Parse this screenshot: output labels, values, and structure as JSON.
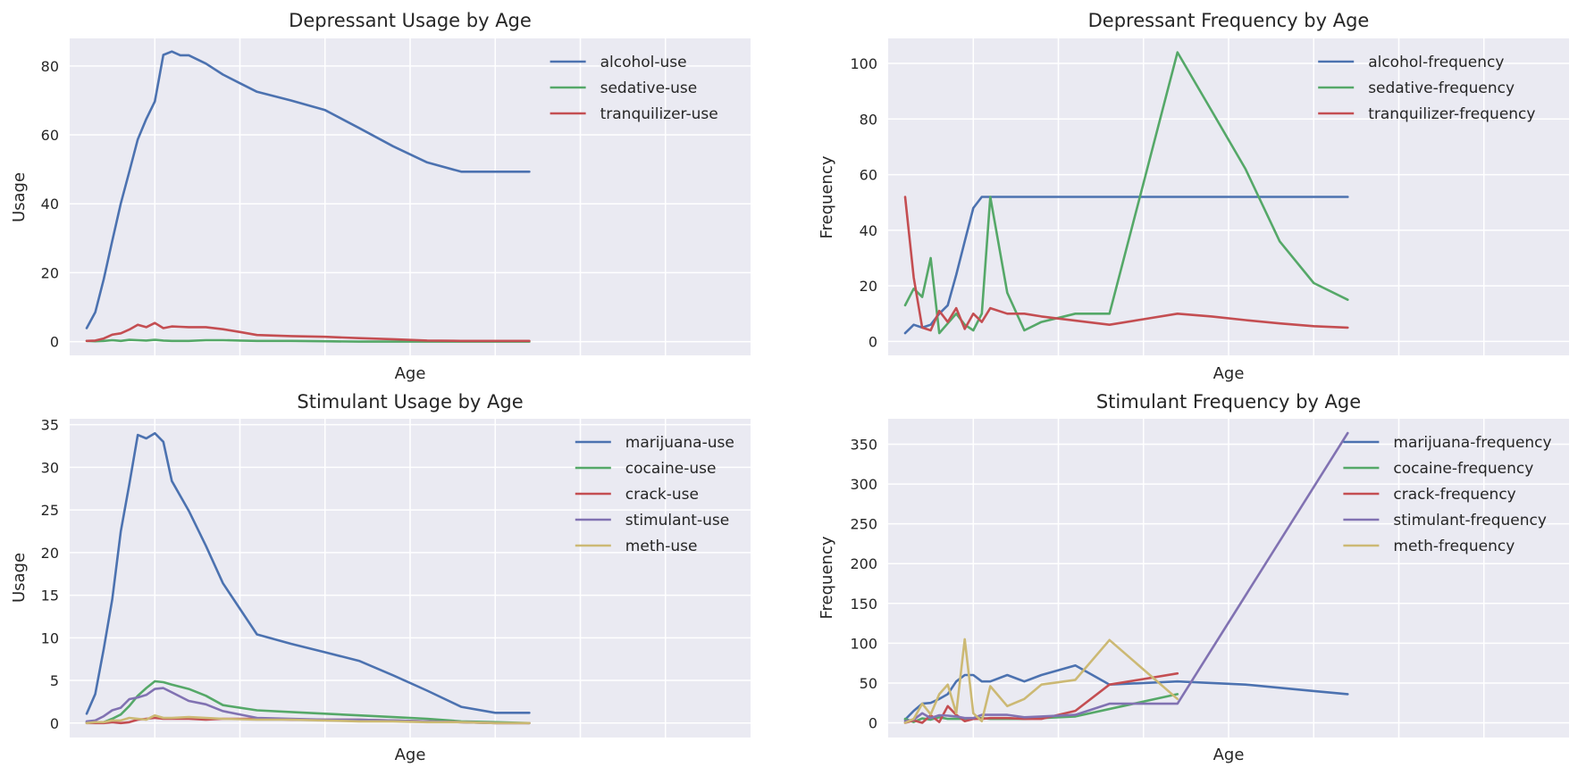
{
  "style": {
    "axes_bg": "#EAEAF2",
    "grid": "#FFFFFF",
    "colors": [
      "#4C72B0",
      "#55A868",
      "#C44E52",
      "#8172B2",
      "#CCB974"
    ]
  },
  "chart_data": [
    {
      "id": "depressant-usage",
      "type": "line",
      "title": "Depressant Usage by Age",
      "xlabel": "Age",
      "ylabel": "Usage",
      "ylim": [
        -4,
        88
      ],
      "yticks": [
        0,
        20,
        40,
        60,
        80
      ],
      "xlim": [
        -1,
        39
      ],
      "x_tick_labels": "hidden",
      "grid": true,
      "legend": "top-right",
      "x": [
        0,
        0.5,
        1,
        1.5,
        2,
        2.5,
        3,
        3.5,
        4,
        4.5,
        5,
        5.5,
        6,
        7,
        8,
        9,
        10,
        12,
        14,
        16,
        18,
        20,
        22,
        24,
        26
      ],
      "series": [
        {
          "name": "alcohol-use",
          "values": [
            3.9,
            8.5,
            18.1,
            29.2,
            40.1,
            49.3,
            58.7,
            64.6,
            69.7,
            83.2,
            84.2,
            83.1,
            83.1,
            80.7,
            77.5,
            75.0,
            72.5,
            70.0,
            67.2,
            62.0,
            56.7,
            52.0,
            49.3,
            49.3,
            49.3
          ]
        },
        {
          "name": "sedative-use",
          "values": [
            0.2,
            0.1,
            0.2,
            0.4,
            0.2,
            0.5,
            0.4,
            0.3,
            0.5,
            0.3,
            0.2,
            0.2,
            0.2,
            0.4,
            0.4,
            0.3,
            0.2,
            0.2,
            0.1,
            0.0,
            0.0,
            0.0,
            0.0,
            0.0,
            0.0
          ]
        },
        {
          "name": "tranquilizer-use",
          "values": [
            0.2,
            0.3,
            0.9,
            2.0,
            2.4,
            3.5,
            4.9,
            4.2,
            5.4,
            3.9,
            4.4,
            4.3,
            4.2,
            4.2,
            3.6,
            2.8,
            1.9,
            1.6,
            1.4,
            1.0,
            0.7,
            0.3,
            0.2,
            0.2,
            0.2
          ]
        }
      ]
    },
    {
      "id": "depressant-frequency",
      "type": "line",
      "title": "Depressant Frequency by Age",
      "xlabel": "Age",
      "ylabel": "Frequency",
      "ylim": [
        -5,
        109
      ],
      "yticks": [
        0,
        20,
        40,
        60,
        80,
        100
      ],
      "xlim": [
        -1,
        39
      ],
      "x_tick_labels": "hidden",
      "grid": true,
      "legend": "top-right",
      "x": [
        0,
        0.5,
        1,
        1.5,
        2,
        2.5,
        3,
        3.5,
        4,
        4.5,
        5,
        6,
        7,
        8,
        10,
        12,
        14,
        16,
        18,
        20,
        22,
        24,
        26
      ],
      "series": [
        {
          "name": "alcohol-frequency",
          "values": [
            3,
            6,
            5,
            6,
            10,
            13,
            24,
            36,
            48,
            52,
            52,
            52,
            52,
            52,
            52,
            52,
            52,
            52,
            52,
            52,
            52,
            52,
            52
          ]
        },
        {
          "name": "sedative-frequency",
          "values": [
            13,
            19,
            16,
            30,
            3,
            6.5,
            10,
            6,
            4,
            10,
            52,
            17.5,
            4,
            7,
            10,
            10,
            57,
            104,
            83,
            62,
            36,
            21,
            15
          ]
        },
        {
          "name": "tranquilizer-frequency",
          "values": [
            52,
            23,
            5,
            4,
            11,
            7,
            12,
            4.5,
            10,
            7,
            12,
            10,
            10,
            9,
            7.5,
            6,
            8,
            10,
            9,
            7.7,
            6.5,
            5.5,
            5
          ]
        }
      ]
    },
    {
      "id": "stimulant-usage",
      "type": "line",
      "title": "Stimulant Usage by Age",
      "xlabel": "Age",
      "ylabel": "Usage",
      "ylim": [
        -1.7,
        35.7
      ],
      "yticks": [
        0,
        5,
        10,
        15,
        20,
        25,
        30,
        35
      ],
      "xlim": [
        -1,
        39
      ],
      "x_tick_labels": "hidden",
      "grid": true,
      "legend": "top-right",
      "x": [
        0,
        0.5,
        1,
        1.5,
        2,
        2.5,
        3,
        3.5,
        4,
        4.5,
        5,
        6,
        7,
        8,
        10,
        12,
        14,
        16,
        18,
        20,
        22,
        24,
        26
      ],
      "series": [
        {
          "name": "marijuana-use",
          "values": [
            1.1,
            3.4,
            8.7,
            14.5,
            22.5,
            28.0,
            33.8,
            33.4,
            34.0,
            33.0,
            28.4,
            24.9,
            20.8,
            16.4,
            10.4,
            9.3,
            8.3,
            7.3,
            5.6,
            3.8,
            1.9,
            1.2,
            1.2
          ]
        },
        {
          "name": "cocaine-use",
          "values": [
            0.1,
            0.1,
            0.1,
            0.5,
            1.0,
            2.0,
            3.2,
            4.1,
            4.9,
            4.8,
            4.5,
            4.0,
            3.2,
            2.1,
            1.5,
            1.3,
            1.1,
            0.9,
            0.7,
            0.5,
            0.2,
            0.1,
            0.0
          ]
        },
        {
          "name": "crack-use",
          "values": [
            0.0,
            0.0,
            0.0,
            0.1,
            0.0,
            0.1,
            0.4,
            0.5,
            0.6,
            0.5,
            0.5,
            0.5,
            0.4,
            0.5,
            0.5,
            0.4,
            0.4,
            0.4,
            0.3,
            0.2,
            0.1,
            0.0,
            0.0
          ]
        },
        {
          "name": "stimulant-use",
          "values": [
            0.2,
            0.3,
            0.8,
            1.5,
            1.8,
            2.8,
            3.0,
            3.3,
            4.0,
            4.1,
            3.6,
            2.6,
            2.2,
            1.4,
            0.6,
            0.5,
            0.4,
            0.4,
            0.3,
            0.2,
            0.1,
            0.0,
            0.0
          ]
        },
        {
          "name": "meth-use",
          "values": [
            0.0,
            0.1,
            0.1,
            0.3,
            0.3,
            0.6,
            0.5,
            0.4,
            0.9,
            0.6,
            0.6,
            0.7,
            0.6,
            0.5,
            0.4,
            0.4,
            0.3,
            0.2,
            0.2,
            0.1,
            0.1,
            0.0,
            0.0
          ]
        }
      ]
    },
    {
      "id": "stimulant-frequency",
      "type": "line",
      "title": "Stimulant Frequency by Age",
      "xlabel": "Age",
      "ylabel": "Frequency",
      "ylim": [
        -18.5,
        382
      ],
      "yticks": [
        0,
        50,
        100,
        150,
        200,
        250,
        300,
        350
      ],
      "xlim": [
        -1,
        39
      ],
      "x_tick_labels": "hidden",
      "grid": true,
      "legend": "top-right",
      "series": [
        {
          "name": "marijuana-frequency",
          "x": [
            0,
            0.5,
            1,
            1.5,
            2,
            2.5,
            3,
            3.5,
            4,
            4.5,
            5,
            6,
            7,
            8,
            10,
            12,
            16,
            20,
            24,
            26
          ],
          "values": [
            4,
            15,
            24,
            25,
            30,
            36,
            52,
            60,
            60,
            52,
            52,
            60,
            52,
            60,
            72,
            48,
            52,
            48,
            40,
            36
          ]
        },
        {
          "name": "cocaine-frequency",
          "x": [
            0,
            0.5,
            1,
            1.5,
            2,
            2.5,
            3,
            3.5,
            4,
            4.5,
            5,
            6,
            7,
            8,
            10,
            16
          ],
          "values": [
            5,
            1,
            5.5,
            4,
            7,
            5,
            5,
            5,
            5,
            6,
            5,
            5,
            5,
            6,
            8,
            36
          ]
        },
        {
          "name": "crack-frequency",
          "x": [
            0,
            0.5,
            1,
            1.5,
            2,
            2.5,
            3,
            3.5,
            4,
            4.5,
            5,
            6,
            7,
            8,
            10,
            12,
            14,
            16
          ],
          "values": [
            0,
            3,
            0,
            9.5,
            1,
            21,
            10,
            2,
            5,
            5,
            6,
            6,
            5,
            5,
            15,
            48,
            55,
            62
          ]
        },
        {
          "name": "stimulant-frequency",
          "x": [
            0,
            0.5,
            1,
            1.5,
            2,
            2.5,
            3,
            3.5,
            4,
            4.5,
            5,
            6,
            7,
            8,
            10,
            12,
            16,
            26
          ],
          "values": [
            2,
            4,
            12,
            6,
            9.5,
            9,
            8,
            6,
            6,
            10,
            10,
            10,
            7,
            8,
            10,
            24,
            24,
            364
          ]
        },
        {
          "name": "meth-frequency",
          "x": [
            0,
            0.5,
            1,
            1.5,
            2,
            2.5,
            3,
            3.5,
            4,
            4.5,
            5,
            6,
            7,
            8,
            10,
            12,
            16
          ],
          "values": [
            0,
            5,
            24,
            10.5,
            36,
            48,
            12,
            105,
            12,
            2,
            46,
            21,
            30,
            48,
            54,
            104,
            30
          ]
        }
      ]
    }
  ]
}
